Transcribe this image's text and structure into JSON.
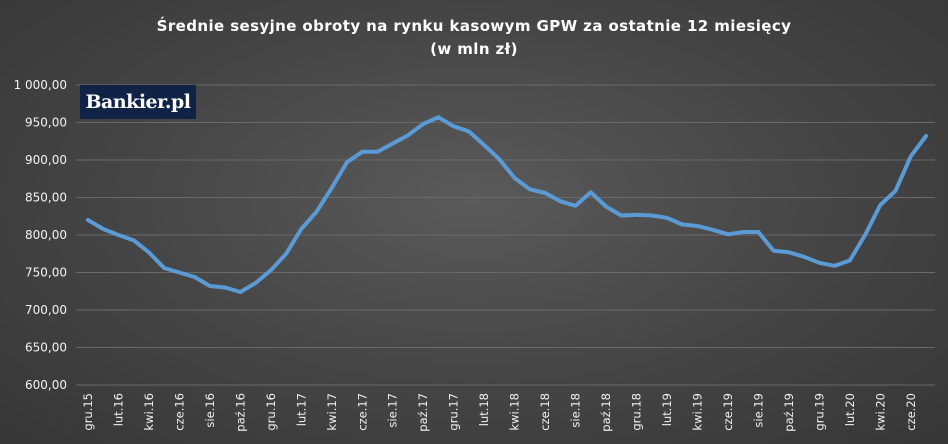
{
  "logo": {
    "text": "Bankier.pl"
  },
  "chart_data": {
    "type": "line",
    "title_lines": [
      "Średnie sesyjne obroty na rynku kasowym GPW za ostatnie 12 miesięcy",
      "(w mln zł)"
    ],
    "xlabel": "",
    "ylabel": "",
    "ylim": [
      600,
      1000
    ],
    "yticks": [
      600,
      650,
      700,
      750,
      800,
      850,
      900,
      950,
      1000
    ],
    "ytick_labels": [
      "600,00",
      "650,00",
      "700,00",
      "750,00",
      "800,00",
      "850,00",
      "900,00",
      "950,00",
      "1 000,00"
    ],
    "grid": true,
    "x_tick_labels": [
      "gru.15",
      "lut.16",
      "kwi.16",
      "cze.16",
      "sie.16",
      "paź.16",
      "gru.16",
      "lut.17",
      "kwi.17",
      "cze.17",
      "sie.17",
      "paź.17",
      "gru.17",
      "lut.18",
      "kwi.18",
      "cze.18",
      "sie.18",
      "paź.18",
      "gru.18",
      "lut.19",
      "kwi.19",
      "cze.19",
      "sie.19",
      "paź.19",
      "gru.19",
      "lut.20",
      "kwi.20",
      "cze.20"
    ],
    "series": [
      {
        "color": "#5b9bd5",
        "values": [
          820,
          808,
          800,
          793,
          777,
          756,
          750,
          744,
          732,
          730,
          724,
          736,
          753,
          775,
          808,
          831,
          863,
          897,
          911,
          911,
          922,
          933,
          948,
          957,
          945,
          938,
          920,
          901,
          876,
          861,
          856,
          845,
          839,
          857,
          838,
          826,
          827,
          826,
          823,
          814,
          812,
          807,
          801,
          804,
          804,
          779,
          777,
          771,
          763,
          759,
          766,
          800,
          840,
          859,
          905,
          932
        ]
      }
    ]
  }
}
